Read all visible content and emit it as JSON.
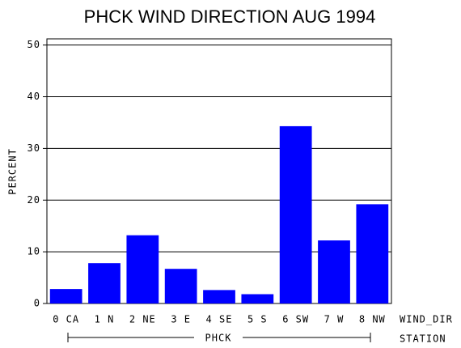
{
  "chart_data": {
    "type": "bar",
    "title": "PHCK WIND DIRECTION AUG 1994",
    "y_label": "PERCENT",
    "x_label": "WIND_DIR",
    "group_label": "PHCK",
    "group_axis_label": "STATION",
    "categories": [
      "0 CA",
      "1 N",
      "2 NE",
      "3 E",
      "4 SE",
      "5 S",
      "6 SW",
      "7 W",
      "8 NW"
    ],
    "values": [
      2.8,
      7.8,
      13.2,
      6.7,
      2.6,
      1.8,
      34.3,
      12.2,
      19.2
    ],
    "color": "#0000ff",
    "ylim": [
      0,
      51.2
    ],
    "yticks": [
      0,
      10,
      20,
      30,
      40,
      50
    ],
    "grid": true
  }
}
